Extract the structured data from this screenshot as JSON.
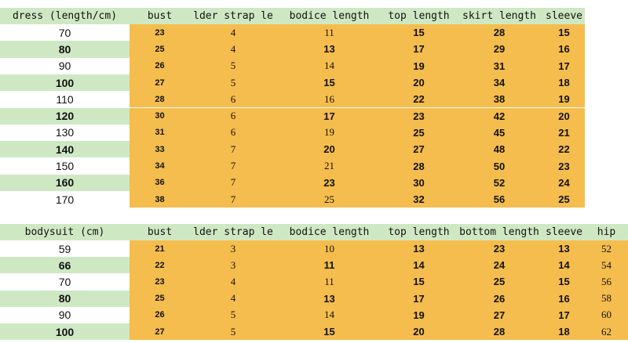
{
  "dress_table": {
    "headers": [
      "dress (length/cm)",
      "bust",
      "lder strap le",
      "bodice length",
      "top length",
      "skirt length",
      "sleeve"
    ],
    "rows": [
      [
        70,
        23,
        4,
        11,
        15,
        28,
        15
      ],
      [
        80,
        25,
        4,
        13,
        17,
        29,
        16
      ],
      [
        90,
        26,
        5,
        14,
        19,
        31,
        17
      ],
      [
        100,
        27,
        5,
        15,
        20,
        34,
        18
      ],
      [
        110,
        28,
        6,
        16,
        22,
        38,
        19
      ],
      [
        120,
        30,
        6,
        17,
        23,
        42,
        20
      ],
      [
        130,
        31,
        6,
        19,
        25,
        45,
        21
      ],
      [
        140,
        33,
        7,
        20,
        27,
        48,
        22
      ],
      [
        150,
        34,
        7,
        21,
        28,
        50,
        23
      ],
      [
        160,
        36,
        7,
        23,
        30,
        52,
        24
      ],
      [
        170,
        38,
        7,
        25,
        32,
        56,
        25
      ]
    ]
  },
  "bodysuit_table": {
    "headers": [
      "bodysuit (cm)",
      "bust",
      "lder strap le",
      "bodice length",
      "top length",
      "bottom length",
      "sleeve",
      "hip"
    ],
    "rows": [
      [
        59,
        21,
        3,
        10,
        13,
        23,
        13,
        52
      ],
      [
        66,
        22,
        3,
        11,
        14,
        24,
        14,
        54
      ],
      [
        70,
        23,
        4,
        11,
        15,
        25,
        15,
        56
      ],
      [
        80,
        25,
        4,
        13,
        17,
        26,
        16,
        58
      ],
      [
        90,
        26,
        5,
        14,
        19,
        27,
        17,
        60
      ],
      [
        100,
        27,
        5,
        15,
        20,
        28,
        18,
        62
      ]
    ]
  }
}
